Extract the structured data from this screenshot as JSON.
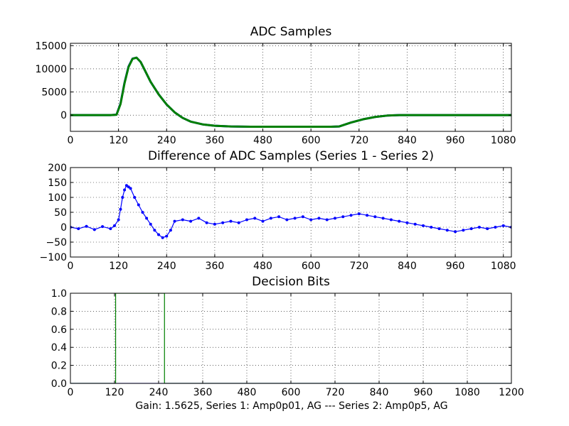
{
  "figure": {
    "footer": "Gain: 1.5625, Series 1: Amp0p01, AG --- Series 2: Amp0p5, AG"
  },
  "chart_data": [
    {
      "type": "line",
      "title": "ADC Samples",
      "xlabel": "",
      "ylabel": "",
      "xlim": [
        0,
        1100
      ],
      "ylim": [
        -3500,
        15500
      ],
      "xticks": [
        0,
        120,
        240,
        360,
        480,
        600,
        720,
        840,
        960,
        1080
      ],
      "yticks": [
        0,
        5000,
        10000,
        15000
      ],
      "grid": true,
      "legend": "none",
      "series": [
        {
          "color": "#0000ff",
          "x": [
            0,
            100,
            115,
            125,
            135,
            145,
            155,
            165,
            175,
            185,
            200,
            220,
            240,
            260,
            280,
            300,
            330,
            360,
            400,
            450,
            500,
            550,
            600,
            650,
            670,
            700,
            730,
            760,
            790,
            820,
            850,
            900,
            960,
            1020,
            1100
          ],
          "y": [
            0,
            0,
            100,
            2500,
            7000,
            10500,
            12200,
            12400,
            11500,
            9800,
            7200,
            4500,
            2300,
            600,
            -600,
            -1400,
            -2000,
            -2300,
            -2450,
            -2500,
            -2500,
            -2500,
            -2500,
            -2500,
            -2450,
            -1600,
            -900,
            -400,
            -100,
            0,
            0,
            0,
            0,
            0,
            0
          ]
        },
        {
          "color": "#008000",
          "x": [
            0,
            100,
            115,
            125,
            135,
            145,
            155,
            165,
            175,
            185,
            200,
            220,
            240,
            260,
            280,
            300,
            330,
            360,
            400,
            450,
            500,
            550,
            600,
            650,
            670,
            700,
            730,
            760,
            790,
            820,
            850,
            900,
            960,
            1020,
            1100
          ],
          "y": [
            0,
            0,
            80,
            2400,
            6900,
            10400,
            12150,
            12400,
            11500,
            9800,
            7200,
            4500,
            2300,
            600,
            -600,
            -1400,
            -2000,
            -2300,
            -2450,
            -2500,
            -2500,
            -2500,
            -2500,
            -2500,
            -2450,
            -1600,
            -900,
            -400,
            -100,
            0,
            0,
            0,
            0,
            0,
            0
          ]
        }
      ]
    },
    {
      "type": "line",
      "title": "Difference of ADC Samples (Series 1 - Series 2)",
      "xlabel": "",
      "ylabel": "",
      "xlim": [
        0,
        1100
      ],
      "ylim": [
        -100,
        200
      ],
      "xticks": [
        0,
        120,
        240,
        360,
        480,
        600,
        720,
        840,
        960,
        1080
      ],
      "yticks": [
        -100,
        -50,
        0,
        50,
        100,
        150,
        200
      ],
      "grid": true,
      "legend": "none",
      "series": [
        {
          "color": "#0000ff",
          "markers": true,
          "x": [
            0,
            20,
            40,
            60,
            80,
            100,
            110,
            120,
            125,
            130,
            135,
            140,
            145,
            150,
            160,
            170,
            180,
            190,
            200,
            210,
            220,
            230,
            240,
            250,
            260,
            280,
            300,
            320,
            340,
            360,
            380,
            400,
            420,
            440,
            460,
            480,
            500,
            520,
            540,
            560,
            580,
            600,
            620,
            640,
            660,
            680,
            700,
            720,
            740,
            760,
            780,
            800,
            820,
            840,
            860,
            880,
            900,
            920,
            940,
            960,
            980,
            1000,
            1020,
            1040,
            1060,
            1080,
            1100
          ],
          "y": [
            0,
            -5,
            3,
            -8,
            2,
            -5,
            5,
            25,
            60,
            100,
            125,
            140,
            135,
            130,
            100,
            75,
            50,
            30,
            10,
            -10,
            -25,
            -35,
            -30,
            -10,
            20,
            25,
            20,
            30,
            15,
            10,
            15,
            20,
            15,
            25,
            30,
            20,
            30,
            35,
            25,
            30,
            35,
            25,
            30,
            25,
            30,
            35,
            40,
            45,
            40,
            35,
            30,
            25,
            20,
            15,
            10,
            5,
            0,
            -5,
            -10,
            -15,
            -10,
            -5,
            0,
            -5,
            0,
            5,
            0
          ]
        }
      ]
    },
    {
      "type": "line",
      "title": "Decision Bits",
      "xlabel": "",
      "ylabel": "",
      "xlim": [
        0,
        1200
      ],
      "ylim": [
        0.0,
        1.0
      ],
      "xticks": [
        0,
        120,
        240,
        360,
        480,
        600,
        720,
        840,
        960,
        1080,
        1200
      ],
      "yticks": [
        0.0,
        0.2,
        0.4,
        0.6,
        0.8,
        1.0
      ],
      "grid": true,
      "legend": "none",
      "series": [
        {
          "color": "#0000ff",
          "x": [
            0,
            1200
          ],
          "y": [
            0,
            0
          ]
        },
        {
          "color": "#008000",
          "x": [
            0,
            123,
            123,
            256,
            256,
            1200
          ],
          "y": [
            0,
            0,
            1,
            1,
            0,
            0
          ]
        }
      ]
    }
  ]
}
